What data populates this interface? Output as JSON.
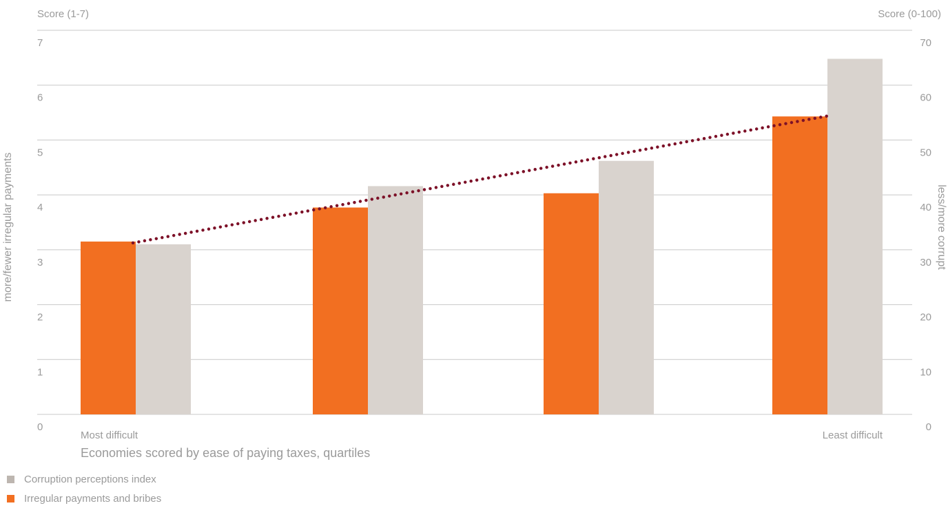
{
  "chart_data": {
    "type": "bar",
    "y_left_title": "Score (1-7)",
    "y_left_label": "more/fewer irregular payments",
    "y_right_title": "Score (0-100)",
    "y_right_label": "less/more corrupt",
    "xlabel": "Economies scored by ease of paying taxes, quartiles",
    "category_labels": [
      "Most difficult",
      "",
      "",
      "Least difficult"
    ],
    "ylim_left": [
      0,
      7
    ],
    "ylim_right": [
      0,
      70
    ],
    "yticks_left": [
      0,
      1,
      2,
      3,
      4,
      5,
      6,
      7
    ],
    "yticks_right": [
      0,
      10,
      20,
      30,
      40,
      50,
      60,
      70
    ],
    "series": [
      {
        "name": "Irregular payments and bribes",
        "axis": "left",
        "color": "#f26f21",
        "values": [
          3.15,
          3.77,
          4.03,
          5.43
        ]
      },
      {
        "name": "Corruption perceptions index",
        "axis": "right",
        "color": "#d9d3ce",
        "values": [
          31,
          41.6,
          46.2,
          64.8
        ]
      }
    ],
    "trendline": {
      "color": "#7d1128",
      "style": "dotted",
      "from_series": 0,
      "from_index": 0,
      "to_index": 3
    },
    "grid": true,
    "legend_position": "bottom-left"
  },
  "legend": [
    {
      "label": "Corruption perceptions index",
      "color": "#bdb6b0"
    },
    {
      "label": "Irregular payments and bribes",
      "color": "#f26f21"
    }
  ]
}
